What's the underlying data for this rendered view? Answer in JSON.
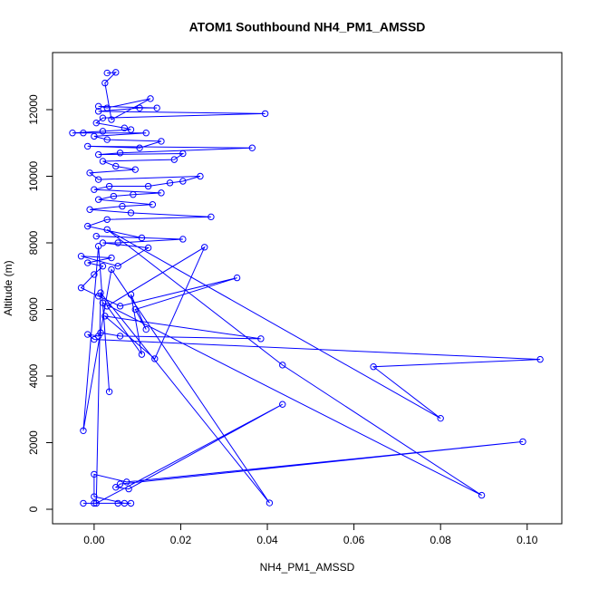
{
  "chart_data": {
    "type": "line",
    "title": "ATOM1 Southbound NH4_PM1_AMSSD",
    "x_label": "NH4_PM1_AMSSD",
    "y_label": "Altitude (m)",
    "xlim": [
      -0.0096,
      0.108
    ],
    "ylim": [
      -435,
      13714
    ],
    "xticks": [
      {
        "value": 0,
        "label": "0.00"
      },
      {
        "value": 0.02,
        "label": "0.02"
      },
      {
        "value": 0.04,
        "label": "0.04"
      },
      {
        "value": 0.06,
        "label": "0.06"
      },
      {
        "value": 0.08,
        "label": "0.08"
      },
      {
        "value": 0.1,
        "label": "0.10"
      }
    ],
    "yticks": [
      0,
      2000,
      4000,
      6000,
      8000,
      10000,
      12000
    ],
    "markers": true,
    "series": [
      {
        "color": "#0000ff",
        "x": [
          -0.0025,
          0,
          0.0055,
          0.0085,
          0.007,
          0,
          0,
          0.0075,
          0.099,
          0.006,
          0.005,
          0.008,
          0.0435,
          0.0005,
          0.0015,
          0.0405,
          0.004,
          -0.0025,
          0.001,
          0.0035,
          0.002,
          0.0895,
          0.0435,
          0.003,
          0.08,
          0.0645,
          0.103,
          0,
          -0.0015,
          0.001,
          0.0015,
          0.006,
          0.0385,
          0.0025,
          0.014,
          0.0255,
          0.003,
          0.011,
          0.0085,
          0.012,
          0.0095,
          0.033,
          0.006,
          0.001,
          -0.003,
          0,
          0.002,
          -0.0015,
          0.004,
          -0.003,
          0.0055,
          0.0125,
          0.002,
          0.0055,
          0.0205,
          0.0005,
          0.011,
          -0.0015,
          0.003,
          0.027,
          0.0085,
          -0.001,
          0.0065,
          0.0135,
          0.001,
          0.0045,
          0.009,
          0.0155,
          0,
          0.0035,
          0.0125,
          0.0175,
          0.0205,
          0.0245,
          0.001,
          -0.001,
          0.0095,
          0.005,
          0.002,
          0.0185,
          0.0205,
          0.001,
          0.006,
          0.0365,
          -0.0015,
          0.0105,
          0.0155,
          0.003,
          0,
          0.012,
          -0.0025,
          -0.005,
          0.002,
          0.0085,
          0.007,
          0.0005,
          0.002,
          0.0395,
          0.001,
          0.0105,
          0.0145,
          0.001,
          0.003,
          0.013,
          0.004,
          0.0025,
          0.005,
          0.003
        ],
        "values": [
          180,
          180,
          180,
          180,
          180,
          380,
          1050,
          820,
          2030,
          760,
          660,
          610,
          3150,
          180,
          6500,
          190,
          7200,
          2360,
          7900,
          3530,
          6200,
          420,
          4330,
          8400,
          2730,
          4280,
          4500,
          5100,
          5250,
          5200,
          5300,
          5200,
          5120,
          5800,
          4520,
          7870,
          6100,
          4650,
          6450,
          5400,
          6000,
          6950,
          6100,
          6400,
          6650,
          7050,
          7300,
          7400,
          7550,
          7600,
          7300,
          7850,
          8000,
          8000,
          8110,
          8200,
          8150,
          8500,
          8700,
          8780,
          8900,
          9000,
          9100,
          9150,
          9300,
          9400,
          9450,
          9500,
          9600,
          9700,
          9700,
          9800,
          9850,
          10000,
          9900,
          10100,
          10200,
          10300,
          10450,
          10500,
          10680,
          10650,
          10700,
          10850,
          10900,
          10850,
          11050,
          11100,
          11200,
          11300,
          11300,
          11300,
          11350,
          11400,
          11450,
          11600,
          11750,
          11880,
          11950,
          12050,
          12050,
          12100,
          12050,
          12330,
          11700,
          12800,
          13120,
          13100
        ]
      }
    ]
  }
}
